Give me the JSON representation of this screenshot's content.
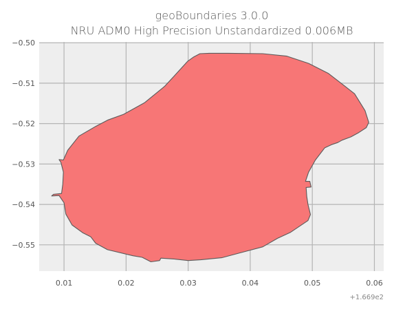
{
  "chart_data": {
    "type": "area",
    "title": "geoBoundaries 3.0.0",
    "subtitle": "NRU ADM0 High Precision Unstandardized 0.006MB",
    "xlabel": "",
    "ylabel": "",
    "x_offset_label": "+1.669e2",
    "xlim": [
      0.006,
      0.0615
    ],
    "ylim": [
      -0.5565,
      -0.4998
    ],
    "x_ticks": [
      0.01,
      0.02,
      0.03,
      0.04,
      0.05,
      0.06
    ],
    "x_tick_labels": [
      "0.01",
      "0.02",
      "0.03",
      "0.04",
      "0.05",
      "0.06"
    ],
    "y_ticks": [
      -0.5,
      -0.51,
      -0.52,
      -0.53,
      -0.54,
      -0.55
    ],
    "y_tick_labels": [
      "−0.50",
      "−0.51",
      "−0.52",
      "−0.53",
      "−0.54",
      "−0.55"
    ],
    "grid": true,
    "colors": {
      "fill": "#f77676",
      "edge": "#5a5a5a",
      "background": "#eeeeee",
      "grid": "#b4b4b4"
    },
    "series": [
      {
        "points": [
          [
            0.0299,
            -0.5046
          ],
          [
            0.0309,
            -0.5035
          ],
          [
            0.0319,
            -0.5027
          ],
          [
            0.0334,
            -0.5026
          ],
          [
            0.0365,
            -0.5026
          ],
          [
            0.042,
            -0.5027
          ],
          [
            0.0459,
            -0.5033
          ],
          [
            0.0494,
            -0.5051
          ],
          [
            0.0526,
            -0.5076
          ],
          [
            0.0553,
            -0.5108
          ],
          [
            0.0568,
            -0.5126
          ],
          [
            0.0585,
            -0.5168
          ],
          [
            0.0591,
            -0.5197
          ],
          [
            0.0587,
            -0.521
          ],
          [
            0.0575,
            -0.5222
          ],
          [
            0.0562,
            -0.5233
          ],
          [
            0.0548,
            -0.5241
          ],
          [
            0.0541,
            -0.5247
          ],
          [
            0.0531,
            -0.5252
          ],
          [
            0.052,
            -0.526
          ],
          [
            0.0505,
            -0.529
          ],
          [
            0.0494,
            -0.532
          ],
          [
            0.0489,
            -0.5343
          ],
          [
            0.0496,
            -0.5343
          ],
          [
            0.0498,
            -0.5357
          ],
          [
            0.049,
            -0.5358
          ],
          [
            0.0491,
            -0.538
          ],
          [
            0.0493,
            -0.54
          ],
          [
            0.0497,
            -0.5425
          ],
          [
            0.0493,
            -0.544
          ],
          [
            0.0465,
            -0.5469
          ],
          [
            0.0444,
            -0.5484
          ],
          [
            0.042,
            -0.5505
          ],
          [
            0.0383,
            -0.552
          ],
          [
            0.0354,
            -0.5532
          ],
          [
            0.032,
            -0.5537
          ],
          [
            0.03,
            -0.5539
          ],
          [
            0.0277,
            -0.5535
          ],
          [
            0.0256,
            -0.5533
          ],
          [
            0.0254,
            -0.5539
          ],
          [
            0.024,
            -0.5542
          ],
          [
            0.0226,
            -0.5531
          ],
          [
            0.0211,
            -0.5527
          ],
          [
            0.017,
            -0.5512
          ],
          [
            0.0151,
            -0.5496
          ],
          [
            0.0143,
            -0.548
          ],
          [
            0.013,
            -0.547
          ],
          [
            0.0113,
            -0.5451
          ],
          [
            0.0103,
            -0.5424
          ],
          [
            0.01,
            -0.5396
          ],
          [
            0.0092,
            -0.5378
          ],
          [
            0.008,
            -0.5379
          ],
          [
            0.0083,
            -0.5375
          ],
          [
            0.0096,
            -0.5373
          ],
          [
            0.0098,
            -0.535
          ],
          [
            0.0099,
            -0.532
          ],
          [
            0.0095,
            -0.5296
          ],
          [
            0.0092,
            -0.5289
          ],
          [
            0.0099,
            -0.529
          ],
          [
            0.0106,
            -0.5266
          ],
          [
            0.0124,
            -0.5231
          ],
          [
            0.0151,
            -0.5207
          ],
          [
            0.0171,
            -0.5191
          ],
          [
            0.0196,
            -0.5177
          ],
          [
            0.023,
            -0.5148
          ],
          [
            0.0262,
            -0.5108
          ],
          [
            0.028,
            -0.5078
          ]
        ]
      }
    ]
  }
}
